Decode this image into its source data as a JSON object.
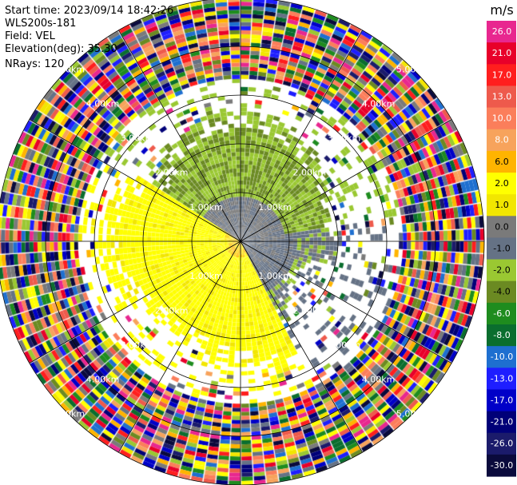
{
  "info": {
    "start_time": "Start time: 2023/09/14 18:42:26",
    "instrument": "WLS200s-181",
    "field": "Field: VEL",
    "elevation": "Elevation(deg): 35.30",
    "nrays": "NRays: 120"
  },
  "chart_data": {
    "type": "heatmap",
    "projection": "ppi-polar",
    "field": "VEL",
    "n_rays": 120,
    "range_rings_km": [
      1.0,
      2.0,
      3.0,
      4.0,
      5.0
    ],
    "range_ring_labels": [
      "1.00km",
      "2.00km",
      "3.00km",
      "4.00km",
      "5.00km"
    ],
    "max_range_km": 5.0,
    "colorbar": {
      "unit": "m/s",
      "tick_labels": [
        "26.0",
        "21.0",
        "17.0",
        "13.0",
        "10.0",
        "8.0",
        "6.0",
        "2.0",
        "1.0",
        "0.0",
        "-1.0",
        "-2.0",
        "-4.0",
        "-6.0",
        "-8.0",
        "-10.0",
        "-13.0",
        "-17.0",
        "-21.0",
        "-26.0",
        "-30.0"
      ],
      "bins": [
        {
          "label": "26.0",
          "color": "#e8278f"
        },
        {
          "label": "21.0",
          "color": "#e8002a"
        },
        {
          "label": "17.0",
          "color": "#ff1e1e"
        },
        {
          "label": "13.0",
          "color": "#ee5a4c"
        },
        {
          "label": "10.0",
          "color": "#fb7e5b"
        },
        {
          "label": "8.0",
          "color": "#f7a35c"
        },
        {
          "label": "6.0",
          "color": "#ffb400"
        },
        {
          "label": "2.0",
          "color": "#ffff00"
        },
        {
          "label": "1.0",
          "color": "#f2e600"
        },
        {
          "label": "0.0",
          "color": "#7a7a7a"
        },
        {
          "label": "-1.0",
          "color": "#657285"
        },
        {
          "label": "-2.0",
          "color": "#9ac832"
        },
        {
          "label": "-4.0",
          "color": "#6b8a22"
        },
        {
          "label": "-6.0",
          "color": "#1e8c1e"
        },
        {
          "label": "-8.0",
          "color": "#0a6e2e"
        },
        {
          "label": "-10.0",
          "color": "#1e6fd0"
        },
        {
          "label": "-13.0",
          "color": "#1e1eff"
        },
        {
          "label": "-17.0",
          "color": "#0000c8"
        },
        {
          "label": "-21.0",
          "color": "#000078"
        },
        {
          "label": "-26.0",
          "color": "#1b1b6b"
        },
        {
          "label": "-30.0",
          "color": "#0a0a3c"
        }
      ]
    },
    "regions": [
      {
        "name": "near-range south-west",
        "velocity_ms": 2.0,
        "range_km": [
          0.0,
          2.9
        ]
      },
      {
        "name": "near-range north-east",
        "velocity_ms": -2.0,
        "range_km": [
          0.0,
          2.6
        ]
      },
      {
        "name": "near-range east",
        "velocity_ms": 0.0,
        "range_km": [
          0.0,
          1.8
        ]
      },
      {
        "name": "far-range",
        "velocity_ms": "noise",
        "range_km": [
          3.4,
          5.0
        ]
      }
    ]
  }
}
